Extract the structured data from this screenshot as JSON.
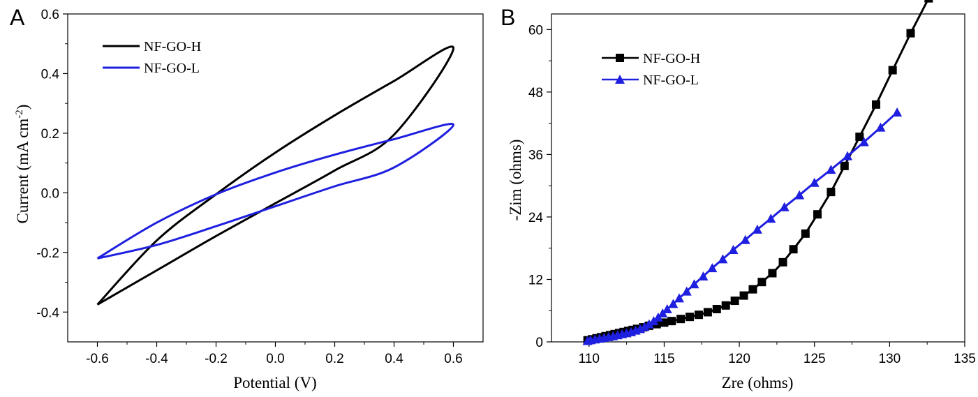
{
  "chart_data": [
    {
      "panel_label": "A",
      "type": "line",
      "xlabel": "Potential (V)",
      "ylabel": "Current (mA cm",
      "ylabel_sup": "-2",
      "ylabel_end": ")",
      "xlim": [
        -0.7,
        0.7
      ],
      "ylim": [
        -0.5,
        0.6
      ],
      "x_ticks": [
        -0.6,
        -0.4,
        -0.2,
        0.0,
        0.2,
        0.4,
        0.6
      ],
      "x_tick_labels": [
        "-0.6",
        "-0.4",
        "-0.2",
        "0.0",
        "0.2",
        "0.4",
        "0.6"
      ],
      "y_ticks": [
        -0.4,
        -0.2,
        0.0,
        0.2,
        0.4,
        0.6
      ],
      "y_tick_labels": [
        "-0.4",
        "-0.2",
        "0.0",
        "0.2",
        "0.4",
        "0.6"
      ],
      "grid": false,
      "legend_position": "top-left",
      "series": [
        {
          "name": "NF-GO-H",
          "color": "#000000",
          "marker": "none",
          "x": [
            -0.6,
            -0.4,
            -0.2,
            0.0,
            0.2,
            0.4,
            0.6,
            0.4,
            0.2,
            0.0,
            -0.2,
            -0.4,
            -0.6
          ],
          "y": [
            -0.375,
            -0.16,
            -0.005,
            0.135,
            0.26,
            0.375,
            0.485,
            0.195,
            0.075,
            -0.035,
            -0.145,
            -0.26,
            -0.375
          ]
        },
        {
          "name": "NF-GO-L",
          "color": "#1f1fe0",
          "marker": "none",
          "x": [
            -0.6,
            -0.4,
            -0.2,
            0.0,
            0.2,
            0.4,
            0.6,
            0.4,
            0.2,
            0.0,
            -0.2,
            -0.4,
            -0.6
          ],
          "y": [
            -0.22,
            -0.1,
            -0.005,
            0.068,
            0.128,
            0.18,
            0.228,
            0.085,
            0.022,
            -0.045,
            -0.112,
            -0.175,
            -0.22
          ]
        }
      ]
    },
    {
      "panel_label": "B",
      "type": "line",
      "xlabel": "Zre (ohms)",
      "ylabel": "-Zim (ohms)",
      "xlim": [
        107.5,
        135
      ],
      "ylim": [
        0,
        63
      ],
      "x_ticks": [
        110,
        115,
        120,
        125,
        130,
        135
      ],
      "x_tick_labels": [
        "110",
        "115",
        "120",
        "125",
        "130",
        "135"
      ],
      "y_ticks": [
        0,
        12,
        24,
        36,
        48,
        60
      ],
      "y_tick_labels": [
        "0",
        "12",
        "24",
        "36",
        "48",
        "60"
      ],
      "grid": false,
      "legend_position": "top-left",
      "series": [
        {
          "name": "NF-GO-H",
          "color": "#000000",
          "marker": "square",
          "x": [
            109.9,
            110.2,
            110.5,
            110.8,
            111.1,
            111.4,
            111.7,
            112.0,
            112.3,
            112.6,
            112.9,
            113.2,
            113.6,
            114.0,
            114.5,
            115.0,
            115.5,
            116.1,
            116.7,
            117.3,
            117.9,
            118.5,
            119.1,
            119.7,
            120.3,
            120.9,
            121.5,
            122.2,
            122.9,
            123.6,
            124.4,
            125.2,
            126.1,
            127.0,
            128.0,
            129.1,
            130.2,
            131.4,
            132.6
          ],
          "y": [
            0.3,
            0.5,
            0.7,
            0.9,
            1.1,
            1.3,
            1.5,
            1.7,
            1.9,
            2.1,
            2.3,
            2.5,
            2.8,
            3.1,
            3.4,
            3.7,
            4.0,
            4.4,
            4.8,
            5.2,
            5.7,
            6.3,
            7.0,
            7.9,
            8.9,
            10.1,
            11.5,
            13.2,
            15.3,
            17.8,
            20.8,
            24.5,
            28.8,
            33.8,
            39.4,
            45.6,
            52.2,
            59.3,
            66.0
          ]
        },
        {
          "name": "NF-GO-L",
          "color": "#1f1fe0",
          "marker": "triangle",
          "x": [
            109.9,
            110.1,
            110.4,
            110.7,
            111.0,
            111.3,
            111.6,
            111.9,
            112.2,
            112.5,
            112.8,
            113.1,
            113.4,
            113.7,
            114.0,
            114.3,
            114.6,
            114.9,
            115.2,
            115.6,
            116.0,
            116.5,
            117.0,
            117.6,
            118.2,
            118.9,
            119.6,
            120.4,
            121.2,
            122.1,
            123.0,
            124.0,
            125.0,
            126.1,
            127.2,
            128.3,
            129.4,
            130.5
          ],
          "y": [
            0.2,
            0.35,
            0.5,
            0.65,
            0.8,
            0.95,
            1.1,
            1.3,
            1.5,
            1.7,
            1.9,
            2.2,
            2.5,
            2.9,
            3.4,
            4.0,
            4.7,
            5.5,
            6.3,
            7.3,
            8.4,
            9.7,
            11.1,
            12.6,
            14.2,
            15.9,
            17.7,
            19.6,
            21.6,
            23.7,
            25.9,
            28.2,
            30.6,
            33.1,
            35.7,
            38.4,
            41.2,
            44.1
          ]
        }
      ]
    }
  ]
}
